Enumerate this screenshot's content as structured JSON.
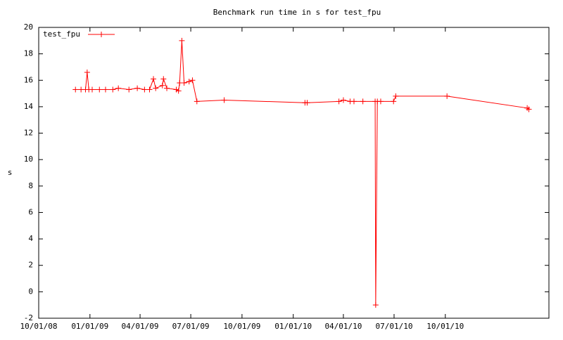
{
  "chart_data": {
    "type": "line",
    "title": "Benchmark run time in s for test_fpu",
    "y_label": "s",
    "x": [
      "2008-12-06",
      "2008-12-16",
      "2008-12-24",
      "2008-12-27",
      "2008-12-30",
      "2009-01-05",
      "2009-01-18",
      "2009-01-29",
      "2009-02-11",
      "2009-02-21",
      "2009-03-12",
      "2009-03-27",
      "2009-04-09",
      "2009-04-18",
      "2009-04-25",
      "2009-04-29",
      "2009-05-11",
      "2009-05-13",
      "2009-05-19",
      "2009-06-05",
      "2009-06-09",
      "2009-06-11",
      "2009-06-15",
      "2009-06-19",
      "2009-06-28",
      "2009-07-04",
      "2009-07-12",
      "2009-08-30",
      "2010-01-22",
      "2010-01-26",
      "2010-03-24",
      "2010-04-01",
      "2010-04-13",
      "2010-04-20",
      "2010-05-06",
      "2010-05-28",
      "2010-05-29",
      "2010-06-01",
      "2010-06-07",
      "2010-06-30",
      "2010-07-04",
      "2010-10-04",
      "2011-02-25",
      "2011-02-28"
    ],
    "series": [
      {
        "name": "test_fpu",
        "color": "#ff0000",
        "values": [
          15.3,
          15.3,
          15.3,
          16.6,
          15.3,
          15.3,
          15.3,
          15.3,
          15.3,
          15.4,
          15.3,
          15.4,
          15.3,
          15.3,
          16.1,
          15.4,
          15.6,
          16.1,
          15.4,
          15.3,
          15.2,
          15.8,
          19.0,
          15.8,
          15.9,
          16.0,
          14.4,
          14.5,
          14.3,
          14.3,
          14.4,
          14.5,
          14.4,
          14.4,
          14.4,
          14.4,
          -1.0,
          14.4,
          14.4,
          14.4,
          14.8,
          14.8,
          13.9,
          13.8
        ]
      }
    ],
    "xlim": [
      "2008-10-01",
      "2011-04-05"
    ],
    "xticks": [
      {
        "value": "2008-10-01",
        "label": "10/01/08"
      },
      {
        "value": "2009-01-01",
        "label": "01/01/09"
      },
      {
        "value": "2009-04-01",
        "label": "04/01/09"
      },
      {
        "value": "2009-07-01",
        "label": "07/01/09"
      },
      {
        "value": "2009-10-01",
        "label": "10/01/09"
      },
      {
        "value": "2010-01-01",
        "label": "01/01/10"
      },
      {
        "value": "2010-04-01",
        "label": "04/01/10"
      },
      {
        "value": "2010-07-01",
        "label": "07/01/10"
      },
      {
        "value": "2010-10-01",
        "label": "10/01/10"
      }
    ],
    "ylim": [
      -2,
      20
    ],
    "yticks": [
      -2,
      0,
      2,
      4,
      6,
      8,
      10,
      12,
      14,
      16,
      18,
      20
    ],
    "grid": false,
    "legend": "top-left"
  }
}
